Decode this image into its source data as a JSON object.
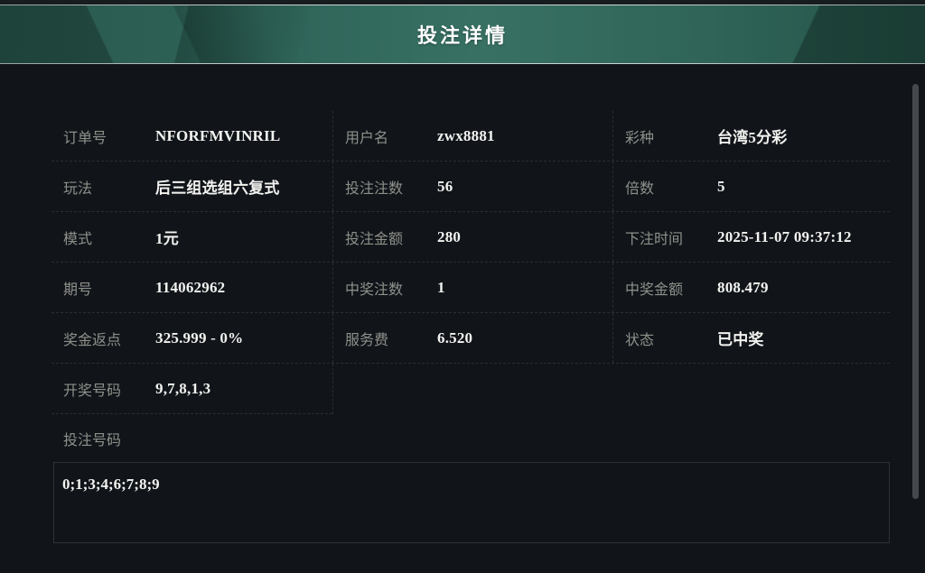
{
  "header": {
    "title": "投注详情"
  },
  "colors": {
    "header_teal_left": "#2a594f",
    "header_teal_center": "#387164",
    "header_teal_right": "#255348",
    "silver_line": "#cdd4d6",
    "page_bg": "#11151a",
    "label_gray": "#8e9089",
    "value_white": "#f2f2ef",
    "divider": "#2a2e33"
  },
  "table": {
    "rows": [
      {
        "cells": [
          {
            "label": "订单号",
            "value": "NFORFMVINRIL"
          },
          {
            "label": "用户名",
            "value": "zwx8881"
          },
          {
            "label": "彩种",
            "value": "台湾5分彩"
          }
        ]
      },
      {
        "cells": [
          {
            "label": "玩法",
            "value": "后三组选组六复式"
          },
          {
            "label": "投注注数",
            "value": "56"
          },
          {
            "label": "倍数",
            "value": "5"
          }
        ]
      },
      {
        "cells": [
          {
            "label": "模式",
            "value": "1元"
          },
          {
            "label": "投注金额",
            "value": "280"
          },
          {
            "label": "下注时间",
            "value": "2025-11-07 09:37:12"
          }
        ]
      },
      {
        "cells": [
          {
            "label": "期号",
            "value": "114062962"
          },
          {
            "label": "中奖注数",
            "value": "1"
          },
          {
            "label": "中奖金额",
            "value": "808.479"
          }
        ]
      },
      {
        "cells": [
          {
            "label": "奖金返点",
            "value": "325.999 - 0%"
          },
          {
            "label": "服务费",
            "value": "6.520"
          },
          {
            "label": "状态",
            "value": "已中奖"
          }
        ]
      },
      {
        "cells": [
          {
            "label": "开奖号码",
            "value": "9,7,8,1,3"
          }
        ]
      }
    ]
  },
  "bet_numbers": {
    "label": "投注号码",
    "value": "0;1;3;4;6;7;8;9"
  }
}
